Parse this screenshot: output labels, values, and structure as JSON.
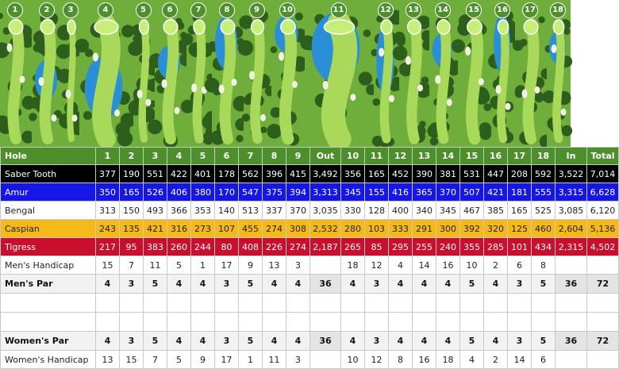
{
  "holes": [
    "1",
    "2",
    "3",
    "4",
    "5",
    "6",
    "7",
    "8",
    "9",
    "10",
    "11",
    "12",
    "13",
    "14",
    "15",
    "16",
    "17",
    "18"
  ],
  "colors": {
    "header": "#4c8f2b",
    "saber_tooth": "#000000",
    "amur": "#1616e6",
    "bengal": "#ffffff",
    "caspian": "#f7b81a",
    "tigress": "#c8102e"
  },
  "header": [
    "Hole",
    "1",
    "2",
    "3",
    "4",
    "5",
    "6",
    "7",
    "8",
    "9",
    "Out",
    "10",
    "11",
    "12",
    "13",
    "14",
    "15",
    "16",
    "17",
    "18",
    "In",
    "Total"
  ],
  "rows": [
    {
      "key": "saber",
      "cells": [
        "Saber Tooth",
        "377",
        "190",
        "551",
        "422",
        "401",
        "178",
        "562",
        "396",
        "415",
        "3,492",
        "356",
        "165",
        "452",
        "390",
        "381",
        "531",
        "447",
        "208",
        "592",
        "3,522",
        "7,014"
      ]
    },
    {
      "key": "amur",
      "cells": [
        "Amur",
        "350",
        "165",
        "526",
        "406",
        "380",
        "170",
        "547",
        "375",
        "394",
        "3,313",
        "345",
        "155",
        "416",
        "365",
        "370",
        "507",
        "421",
        "181",
        "555",
        "3,315",
        "6,628"
      ]
    },
    {
      "key": "bengal",
      "cells": [
        "Bengal",
        "313",
        "150",
        "493",
        "366",
        "353",
        "140",
        "513",
        "337",
        "370",
        "3,035",
        "330",
        "128",
        "400",
        "340",
        "345",
        "467",
        "385",
        "165",
        "525",
        "3,085",
        "6,120"
      ]
    },
    {
      "key": "caspian",
      "cells": [
        "Caspian",
        "243",
        "135",
        "421",
        "316",
        "273",
        "107",
        "455",
        "274",
        "308",
        "2,532",
        "280",
        "103",
        "333",
        "291",
        "300",
        "392",
        "320",
        "125",
        "460",
        "2,604",
        "5,136"
      ]
    },
    {
      "key": "tigress",
      "cells": [
        "Tigress",
        "217",
        "95",
        "383",
        "260",
        "244",
        "80",
        "408",
        "226",
        "274",
        "2,187",
        "265",
        "85",
        "295",
        "255",
        "240",
        "355",
        "285",
        "101",
        "434",
        "2,315",
        "4,502"
      ]
    },
    {
      "key": "mhcp",
      "cells": [
        "Men's Handicap",
        "15",
        "7",
        "11",
        "5",
        "1",
        "17",
        "9",
        "13",
        "3",
        "",
        "18",
        "12",
        "4",
        "14",
        "16",
        "10",
        "2",
        "6",
        "8",
        "",
        ""
      ]
    },
    {
      "key": "par",
      "cells": [
        "Men's Par",
        "4",
        "3",
        "5",
        "4",
        "4",
        "3",
        "5",
        "4",
        "4",
        "36",
        "4",
        "3",
        "4",
        "4",
        "4",
        "5",
        "4",
        "3",
        "5",
        "36",
        "72"
      ]
    },
    {
      "key": "blank",
      "cells": [
        "",
        "",
        "",
        "",
        "",
        "",
        "",
        "",
        "",
        "",
        "",
        "",
        "",
        "",
        "",
        "",
        "",
        "",
        "",
        "",
        "",
        ""
      ]
    },
    {
      "key": "blank",
      "cells": [
        "",
        "",
        "",
        "",
        "",
        "",
        "",
        "",
        "",
        "",
        "",
        "",
        "",
        "",
        "",
        "",
        "",
        "",
        "",
        "",
        "",
        ""
      ]
    },
    {
      "key": "par",
      "cells": [
        "Women's Par",
        "4",
        "3",
        "5",
        "4",
        "4",
        "3",
        "5",
        "4",
        "4",
        "36",
        "4",
        "3",
        "4",
        "4",
        "4",
        "5",
        "4",
        "3",
        "5",
        "36",
        "72"
      ]
    },
    {
      "key": "whcp",
      "cells": [
        "Women's Handicap",
        "13",
        "15",
        "7",
        "5",
        "9",
        "17",
        "1",
        "11",
        "3",
        "",
        "10",
        "12",
        "8",
        "16",
        "18",
        "4",
        "2",
        "14",
        "6",
        "",
        ""
      ]
    }
  ]
}
